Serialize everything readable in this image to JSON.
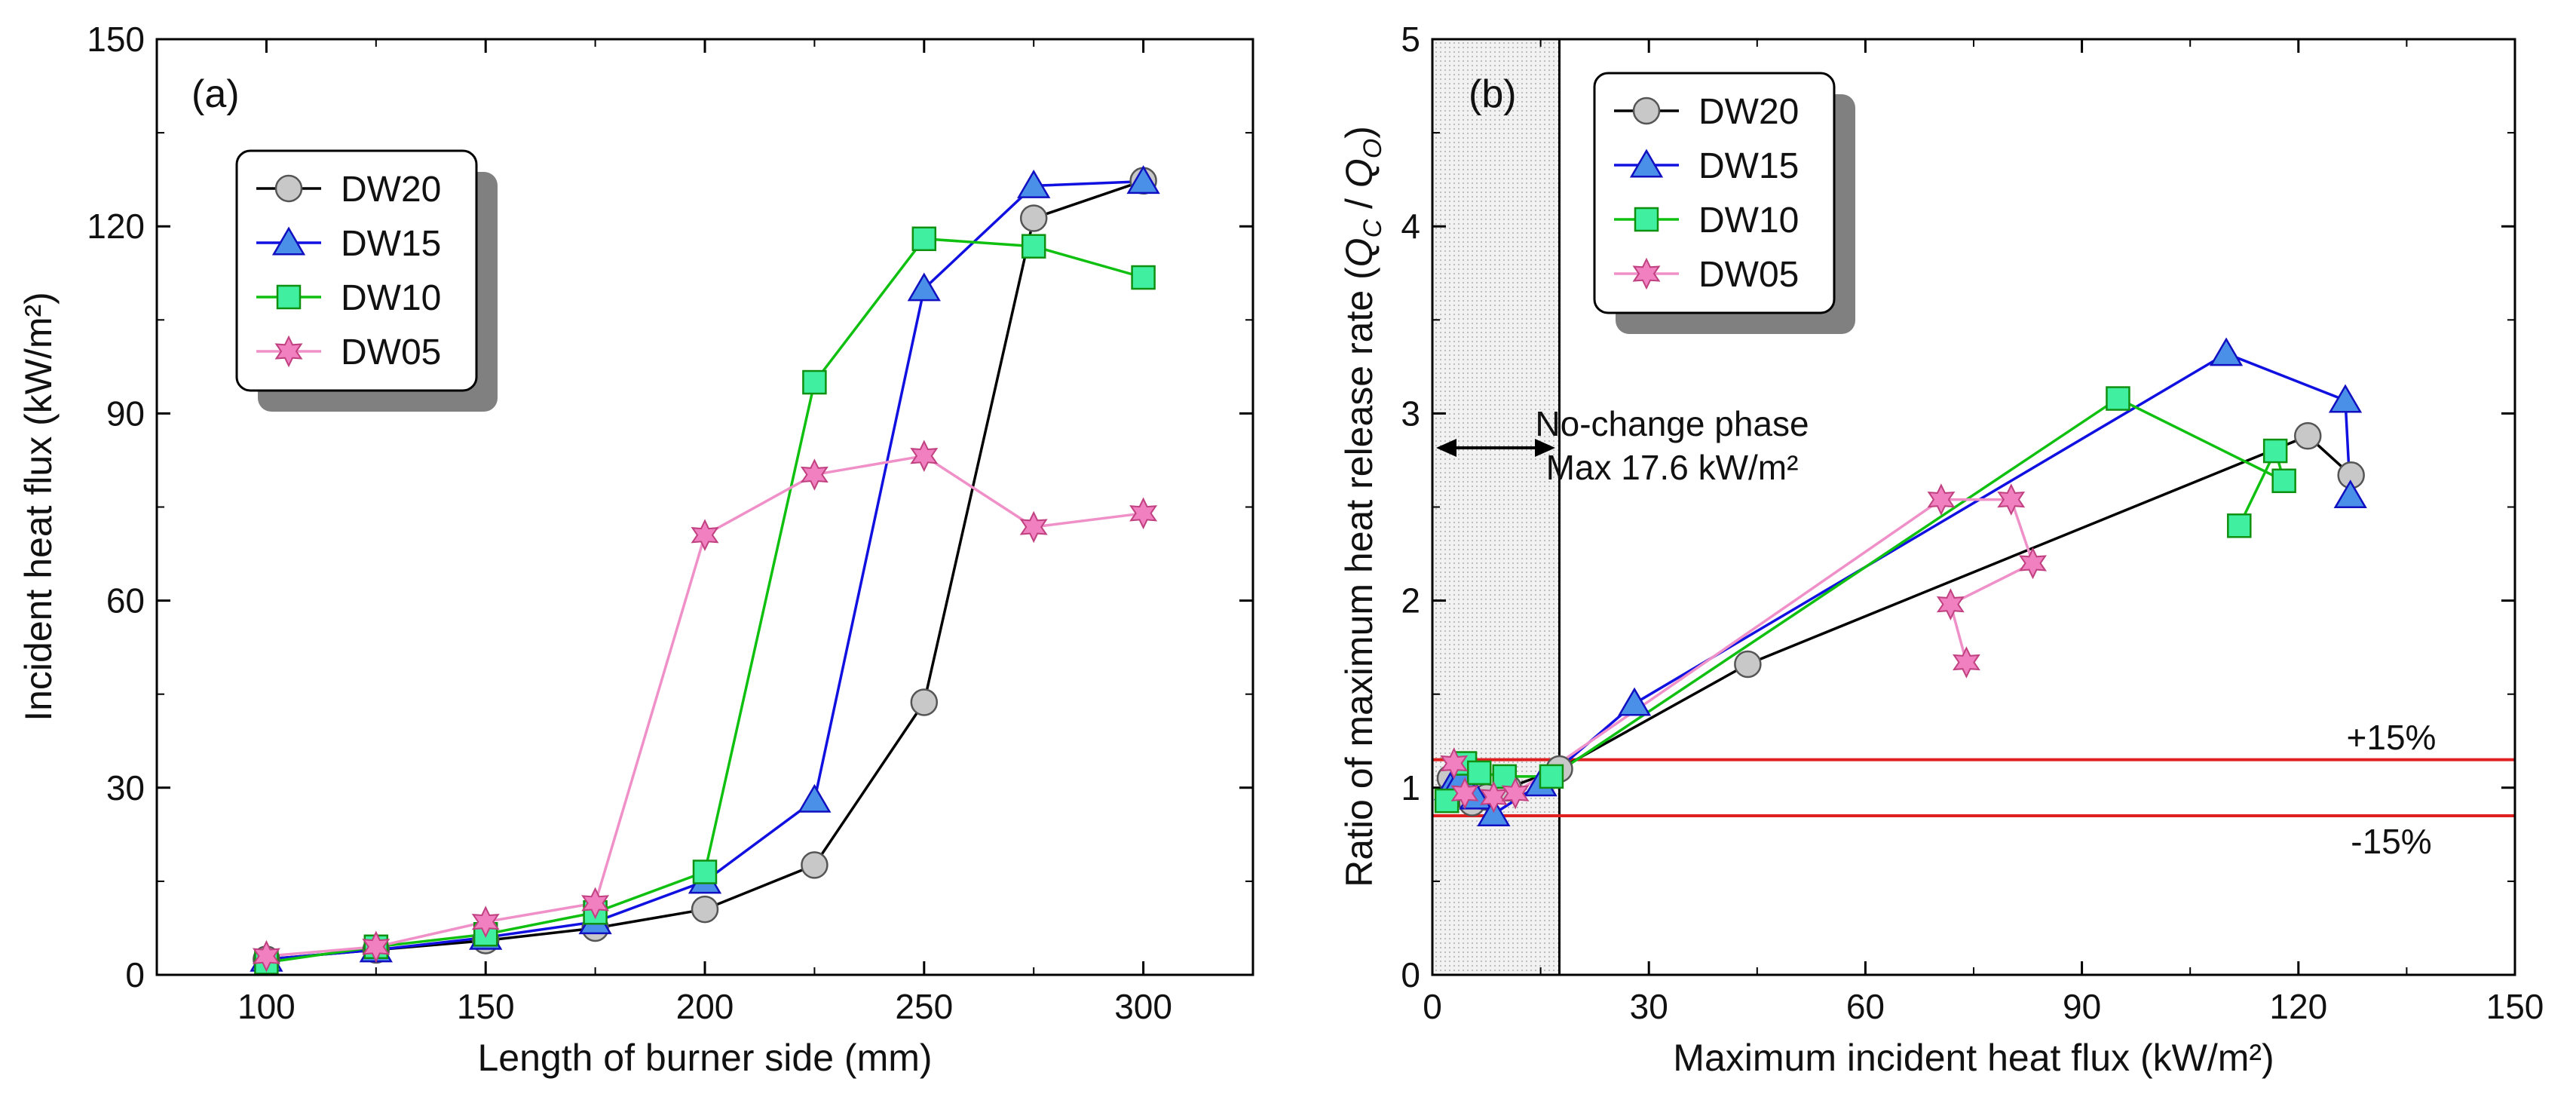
{
  "chart_data": [
    {
      "panel": "(a)",
      "type": "line",
      "title": "",
      "xlabel": "Length of burner side (mm)",
      "ylabel": "Incident heat flux (kW/m²)",
      "xlim": [
        75,
        325
      ],
      "ylim": [
        0,
        150
      ],
      "xticks": [
        100,
        150,
        200,
        250,
        300
      ],
      "yticks": [
        0,
        30,
        60,
        90,
        120,
        150
      ],
      "legend_position": "upper-left",
      "series": [
        {
          "name": "DW20",
          "marker": "circle",
          "line_color": "#000000",
          "fill_color": "#c8c8c8",
          "x": [
            100,
            125,
            150,
            175,
            200,
            225,
            250,
            275,
            300
          ],
          "y": [
            2.5,
            4,
            5.5,
            7.5,
            10.5,
            17.6,
            43.7,
            121.3,
            127.3
          ]
        },
        {
          "name": "DW15",
          "marker": "triangle",
          "line_color": "#1010e0",
          "fill_color": "#4a90e8",
          "x": [
            100,
            125,
            150,
            175,
            200,
            225,
            250,
            275,
            300
          ],
          "y": [
            2.5,
            4,
            6,
            8.5,
            15,
            28,
            110,
            126.5,
            127.2
          ]
        },
        {
          "name": "DW10",
          "marker": "square",
          "line_color": "#10c010",
          "fill_color": "#40f0a0",
          "x": [
            100,
            125,
            150,
            175,
            200,
            225,
            250,
            275,
            300
          ],
          "y": [
            2,
            4.5,
            6.5,
            10,
            16.5,
            95,
            118,
            116.8,
            111.8
          ]
        },
        {
          "name": "DW05",
          "marker": "star",
          "line_color": "#f090c8",
          "fill_color": "#f080c0",
          "x": [
            100,
            125,
            150,
            175,
            200,
            225,
            250,
            275,
            300
          ],
          "y": [
            3,
            4.5,
            8.5,
            11.5,
            70.5,
            80.2,
            83.2,
            71.8,
            74
          ]
        }
      ]
    },
    {
      "panel": "(b)",
      "type": "line",
      "title": "",
      "xlabel": "Maximum incident heat flux (kW/m²)",
      "ylabel_prefix": "Ratio of maximum heat release rate (",
      "ylabel_q1": "Q",
      "ylabel_sub1": "C",
      "ylabel_sep": " / ",
      "ylabel_q2": "Q",
      "ylabel_sub2": "O",
      "ylabel_suffix": ")",
      "xlim": [
        0,
        150
      ],
      "ylim": [
        0,
        5
      ],
      "xticks": [
        0,
        30,
        60,
        90,
        120,
        150
      ],
      "yticks": [
        0,
        1,
        2,
        3,
        4,
        5
      ],
      "legend_position": "upper-left",
      "shaded_region": {
        "x": [
          0,
          17.6
        ],
        "label_line1": "No-change phase",
        "label_line2": "Max 17.6 kW/m²"
      },
      "reference_lines": [
        {
          "y": 1.15,
          "label": "+15%",
          "color": "#e02020"
        },
        {
          "y": 0.85,
          "label": "-15%",
          "color": "#e02020"
        }
      ],
      "series": [
        {
          "name": "DW20",
          "marker": "circle",
          "line_color": "#000000",
          "fill_color": "#c8c8c8",
          "x": [
            2.5,
            4,
            5.5,
            7.5,
            10.5,
            17.6,
            43.7,
            121.3,
            127.3
          ],
          "y": [
            1.05,
            1.0,
            0.92,
            0.95,
            1.0,
            1.1,
            1.66,
            2.88,
            2.67
          ]
        },
        {
          "name": "DW15",
          "marker": "triangle",
          "line_color": "#1010e0",
          "fill_color": "#4a90e8",
          "x": [
            2.5,
            4,
            6,
            8.5,
            15,
            28,
            110,
            126.5,
            127.2
          ],
          "y": [
            1.0,
            1.05,
            0.95,
            0.86,
            1.02,
            1.45,
            3.32,
            3.07,
            2.56
          ]
        },
        {
          "name": "DW10",
          "marker": "square",
          "line_color": "#10c010",
          "fill_color": "#40f0a0",
          "x": [
            2,
            4.5,
            6.5,
            10,
            16.5,
            95,
            118,
            116.8,
            111.8
          ],
          "y": [
            0.93,
            1.13,
            1.08,
            1.06,
            1.06,
            3.08,
            2.64,
            2.8,
            2.4
          ]
        },
        {
          "name": "DW05",
          "marker": "star",
          "line_color": "#f090c8",
          "fill_color": "#f080c0",
          "x": [
            3,
            4.5,
            8.5,
            11.5,
            70.5,
            80.2,
            83.2,
            71.8,
            74
          ],
          "y": [
            1.13,
            0.97,
            0.95,
            0.97,
            2.54,
            2.54,
            2.2,
            1.98,
            1.67
          ]
        }
      ]
    }
  ]
}
